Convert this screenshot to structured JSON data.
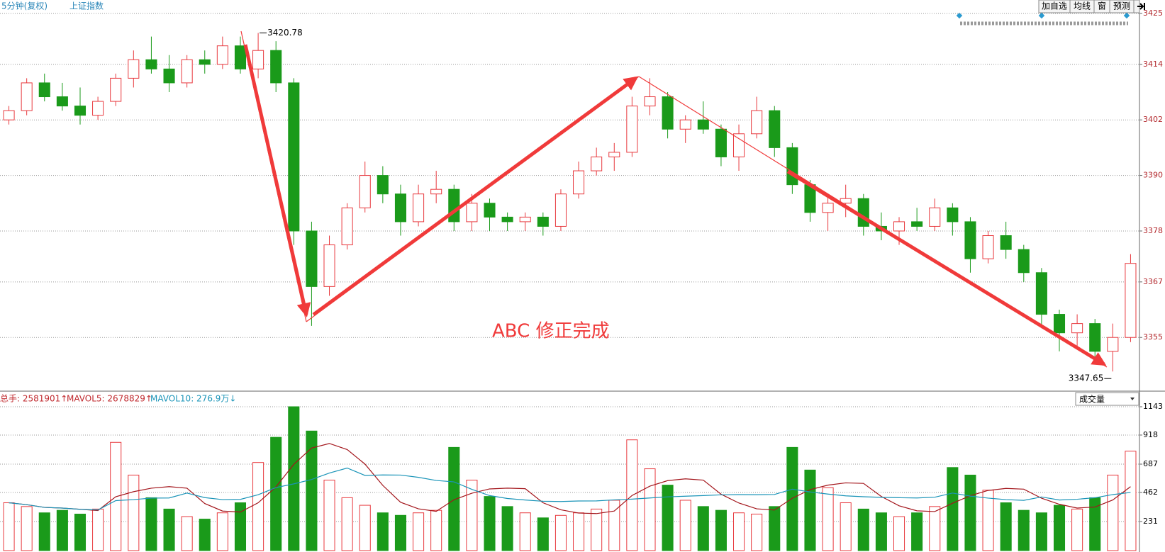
{
  "header": {
    "period": "5分钟(复权)",
    "symbol": "上证指数",
    "buttons": [
      "加自选",
      "均线",
      "窗",
      "预测"
    ]
  },
  "chart_data": [
    {
      "type": "candlestick",
      "ylim": [
        3343.4,
        3427.9
      ],
      "yticks": [
        3425,
        3414,
        3402,
        3390,
        3378,
        3367,
        3355
      ],
      "grid": true,
      "up_color": "#e8393e",
      "down_color": "#1a9a1a",
      "annotations": {
        "high": "3420.78",
        "low": "3347.65",
        "note": "ABC 修正完成"
      },
      "ohlc": [
        [
          3402,
          3405,
          3401,
          3404
        ],
        [
          3404,
          3411,
          3403,
          3410
        ],
        [
          3410,
          3412,
          3406,
          3407
        ],
        [
          3407,
          3410,
          3404,
          3405
        ],
        [
          3405,
          3409,
          3401,
          3403
        ],
        [
          3403,
          3407,
          3402,
          3406
        ],
        [
          3406,
          3412,
          3405,
          3411
        ],
        [
          3411,
          3417,
          3409,
          3415
        ],
        [
          3415,
          3420,
          3412,
          3413
        ],
        [
          3413,
          3416,
          3408,
          3410
        ],
        [
          3410,
          3416,
          3409,
          3415
        ],
        [
          3415,
          3417,
          3412,
          3414
        ],
        [
          3414,
          3420,
          3413,
          3418
        ],
        [
          3418,
          3420,
          3412,
          3413
        ],
        [
          3413,
          3420.78,
          3411,
          3417
        ],
        [
          3417,
          3419,
          3408,
          3410
        ],
        [
          3410,
          3411,
          3375,
          3378
        ],
        [
          3378,
          3380,
          3357.5,
          3366
        ],
        [
          3366,
          3377,
          3364,
          3375
        ],
        [
          3375,
          3384,
          3374,
          3383
        ],
        [
          3383,
          3393,
          3382,
          3390
        ],
        [
          3390,
          3392,
          3384,
          3386
        ],
        [
          3386,
          3388,
          3377,
          3380
        ],
        [
          3380,
          3388,
          3379,
          3386
        ],
        [
          3386,
          3391,
          3384,
          3387
        ],
        [
          3387,
          3388,
          3378,
          3380
        ],
        [
          3380,
          3386,
          3378,
          3384
        ],
        [
          3384,
          3385,
          3378,
          3381
        ],
        [
          3381,
          3382,
          3378,
          3380
        ],
        [
          3380,
          3382,
          3378,
          3381
        ],
        [
          3381,
          3382,
          3377,
          3379
        ],
        [
          3379,
          3387,
          3378,
          3386
        ],
        [
          3386,
          3393,
          3385,
          3391
        ],
        [
          3391,
          3396,
          3390,
          3394
        ],
        [
          3394,
          3397,
          3391,
          3395
        ],
        [
          3395,
          3407,
          3394,
          3405
        ],
        [
          3405,
          3411,
          3403,
          3407
        ],
        [
          3407,
          3408,
          3398,
          3400
        ],
        [
          3400,
          3403,
          3397,
          3402
        ],
        [
          3402,
          3406,
          3399,
          3400
        ],
        [
          3400,
          3401,
          3392,
          3394
        ],
        [
          3394,
          3401,
          3391,
          3399
        ],
        [
          3399,
          3407,
          3398,
          3404
        ],
        [
          3404,
          3405,
          3394,
          3396
        ],
        [
          3396,
          3397,
          3386,
          3388
        ],
        [
          3388,
          3389,
          3380,
          3382
        ],
        [
          3382,
          3386,
          3378,
          3384
        ],
        [
          3384,
          3388,
          3381,
          3385
        ],
        [
          3385,
          3386,
          3377,
          3379
        ],
        [
          3379,
          3382,
          3376,
          3378
        ],
        [
          3378,
          3381,
          3375,
          3380
        ],
        [
          3380,
          3383,
          3378,
          3379
        ],
        [
          3379,
          3385,
          3378,
          3383
        ],
        [
          3383,
          3384,
          3377,
          3380
        ],
        [
          3380,
          3381,
          3369,
          3372
        ],
        [
          3372,
          3378,
          3371,
          3377
        ],
        [
          3377,
          3380,
          3372,
          3374
        ],
        [
          3374,
          3375,
          3367,
          3369
        ],
        [
          3369,
          3370,
          3357,
          3360
        ],
        [
          3360,
          3361,
          3352,
          3356
        ],
        [
          3356,
          3360,
          3353,
          3358
        ],
        [
          3358,
          3359,
          3350,
          3352
        ],
        [
          3352,
          3358,
          3347.65,
          3355
        ],
        [
          3355,
          3373,
          3354,
          3371
        ]
      ]
    },
    {
      "type": "volume",
      "ylim": [
        0,
        1250
      ],
      "yticks": [
        1143,
        918,
        687,
        462,
        231
      ],
      "grid": true,
      "readouts": [
        "总手: 2581901↑",
        "MAVOL5: 2678829↑",
        "MAVOL10: 276.9万↓"
      ],
      "selector": "成交量",
      "values": [
        380,
        350,
        300,
        320,
        290,
        330,
        860,
        600,
        420,
        330,
        270,
        250,
        300,
        380,
        700,
        900,
        1143,
        950,
        560,
        420,
        360,
        300,
        280,
        300,
        320,
        820,
        560,
        430,
        350,
        300,
        260,
        280,
        300,
        330,
        400,
        880,
        650,
        520,
        400,
        350,
        320,
        300,
        290,
        350,
        820,
        640,
        500,
        380,
        330,
        300,
        270,
        300,
        350,
        660,
        600,
        480,
        380,
        320,
        300,
        360,
        330,
        420,
        600,
        790
      ],
      "series": [
        {
          "name": "MAVOL5",
          "color": "#a3151b",
          "values": [
            380,
            365,
            343,
            338,
            328,
            318,
            428,
            468,
            496,
            508,
            496,
            374,
            314,
            306,
            380,
            506,
            685,
            815,
            851,
            803,
            687,
            518,
            384,
            332,
            312,
            404,
            456,
            490,
            496,
            492,
            380,
            324,
            298,
            294,
            314,
            438,
            512,
            556,
            570,
            560,
            448,
            378,
            332,
            322,
            416,
            484,
            520,
            538,
            534,
            430,
            356,
            316,
            310,
            376,
            436,
            478,
            494,
            488,
            416,
            368,
            338,
            346,
            402,
            508
          ]
        },
        {
          "name": "MAVOL10",
          "color": "#1a94b8",
          "values": [
            380,
            365,
            343,
            338,
            328,
            323,
            397,
            405,
            417,
            418,
            457,
            421,
            405,
            407,
            444,
            501,
            530,
            565,
            616,
            656,
            597,
            601,
            600,
            582,
            557,
            546,
            487,
            437,
            414,
            402,
            392,
            390,
            394,
            395,
            403,
            409,
            418,
            427,
            432,
            437,
            443,
            445,
            444,
            446,
            488,
            466,
            449,
            435,
            428,
            423,
            420,
            418,
            424,
            457,
            433,
            417,
            405,
            399,
            426,
            402,
            408,
            420,
            445,
            462
          ]
        }
      ]
    }
  ]
}
